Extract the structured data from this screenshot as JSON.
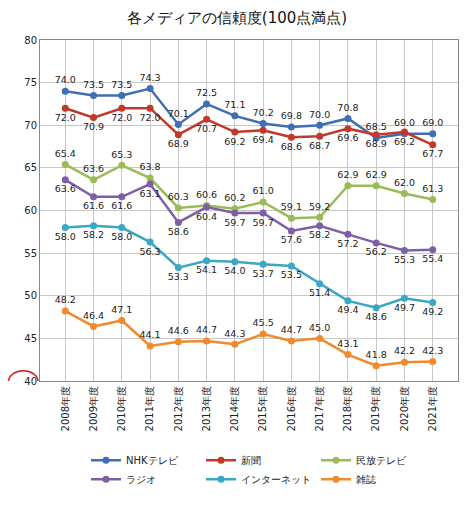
{
  "chart_data": {
    "type": "line",
    "title": "各メディアの信頼度(100点満点)",
    "categories": [
      "2008年度",
      "2009年度",
      "2010年度",
      "2011年度",
      "2012年度",
      "2013年度",
      "2014年度",
      "2015年度",
      "2016年度",
      "2017年度",
      "2018年度",
      "2019年度",
      "2020年度",
      "2021年度"
    ],
    "series": [
      {
        "name": "NHKテレビ",
        "color": "#3F6EB5",
        "values": [
          74.0,
          73.5,
          73.5,
          74.3,
          70.1,
          72.5,
          71.1,
          70.2,
          69.8,
          70.0,
          70.8,
          68.5,
          69.0,
          69.0
        ],
        "value_labels": [
          "74.0",
          "73.5",
          "73.5",
          "74.3",
          "70.1",
          "72.5",
          "71.1",
          "70.2",
          "69.8",
          "70.0",
          "70.8",
          "68.5",
          "69.0",
          "69.0"
        ]
      },
      {
        "name": "新聞",
        "color": "#C0392B",
        "values": [
          72.0,
          70.9,
          72.0,
          72.0,
          68.9,
          70.7,
          69.2,
          69.4,
          68.6,
          68.7,
          69.6,
          68.9,
          69.2,
          67.7
        ],
        "value_labels": [
          "72.0",
          "70.9",
          "72.0",
          "72.0",
          "68.9",
          "70.7",
          "69.2",
          "69.4",
          "68.6",
          "68.7",
          "69.6",
          "68.9",
          "69.2",
          "67.7"
        ]
      },
      {
        "name": "民放テレビ",
        "color": "#9BBB59",
        "values": [
          65.4,
          63.6,
          65.3,
          63.8,
          60.3,
          60.6,
          60.2,
          61.0,
          59.1,
          59.2,
          62.9,
          62.9,
          62.0,
          61.3
        ],
        "value_labels": [
          "65.4",
          "63.6",
          "65.3",
          "63.8",
          "60.3",
          "60.6",
          "60.2",
          "61.0",
          "59.1",
          "59.2",
          "62.9",
          "62.9",
          "62.0",
          "61.3"
        ]
      },
      {
        "name": "ラジオ",
        "color": "#7E5FA6",
        "values": [
          63.6,
          61.6,
          61.6,
          63.1,
          58.6,
          60.4,
          59.7,
          59.7,
          57.6,
          58.2,
          57.2,
          56.2,
          55.3,
          55.4
        ],
        "value_labels": [
          "63.6",
          "61.6",
          "61.6",
          "63.1",
          "58.6",
          "60.4",
          "59.7",
          "59.7",
          "57.6",
          "58.2",
          "57.2",
          "56.2",
          "55.3",
          "55.4"
        ]
      },
      {
        "name": "インターネット",
        "color": "#3AA7C4",
        "values": [
          58.0,
          58.2,
          58.0,
          56.3,
          53.3,
          54.1,
          54.0,
          53.7,
          53.5,
          51.4,
          49.4,
          48.6,
          49.7,
          49.2
        ],
        "value_labels": [
          "58.0",
          "58.2",
          "58.0",
          "56.3",
          "53.3",
          "54.1",
          "54.0",
          "53.7",
          "53.5",
          "51.4",
          "49.4",
          "48.6",
          "49.7",
          "49.2"
        ]
      },
      {
        "name": "雑誌",
        "color": "#F08A2C",
        "values": [
          48.2,
          46.4,
          47.1,
          44.1,
          44.6,
          44.7,
          44.3,
          45.5,
          44.7,
          45.0,
          43.1,
          41.8,
          42.2,
          42.3
        ],
        "value_labels": [
          "48.2",
          "46.4",
          "47.1",
          "44.1",
          "44.6",
          "44.7",
          "44.3",
          "45.5",
          "44.7",
          "45.0",
          "43.1",
          "41.8",
          "42.2",
          "42.3"
        ]
      }
    ],
    "ylim": [
      40,
      80
    ],
    "yticks": [
      40,
      45,
      50,
      55,
      60,
      65,
      70,
      75,
      80
    ],
    "grid": true,
    "legend": "bottom",
    "data_labels": true,
    "marker": "circle"
  }
}
